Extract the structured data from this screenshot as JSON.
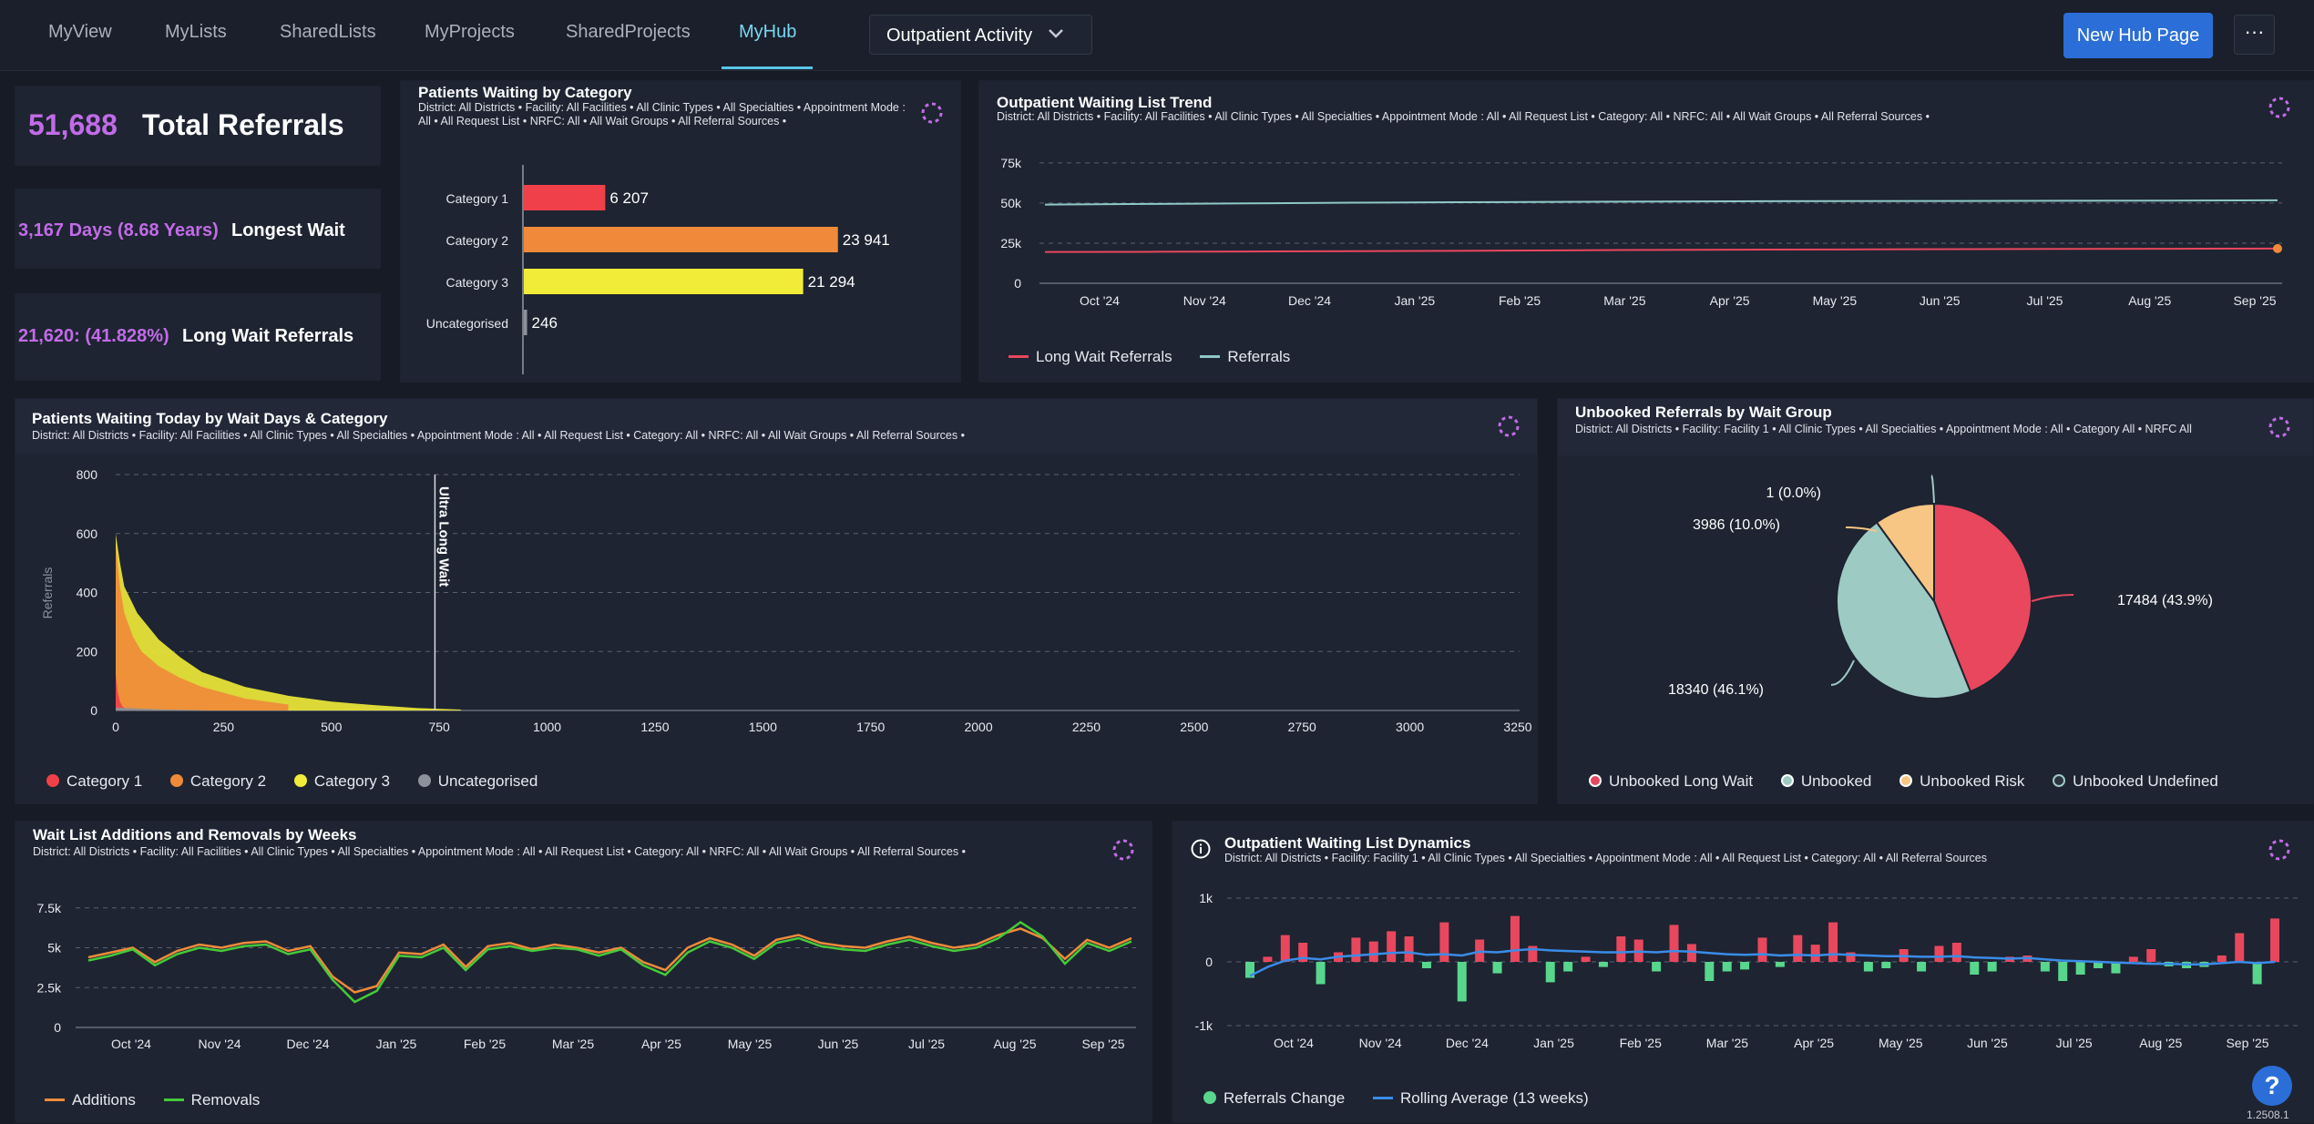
{
  "nav": {
    "tabs": [
      "MyView",
      "MyLists",
      "SharedLists",
      "MyProjects",
      "SharedProjects",
      "MyHub"
    ],
    "active_tab": "MyHub",
    "dropdown_value": "Outpatient Activity",
    "new_hub_label": "New Hub Page",
    "more_label": "···"
  },
  "kpis": {
    "total_referrals_value": "51,688",
    "total_referrals_label": "Total Referrals",
    "longest_wait_value": "3,167 Days (8.68 Years)",
    "longest_wait_label": "Longest Wait",
    "long_wait_value": "21,620: (41.828%)",
    "long_wait_label": "Long Wait Referrals"
  },
  "colors": {
    "cat1": "#f0404a",
    "cat2": "#f08a3a",
    "cat3": "#f0ec38",
    "uncat": "#8c919b",
    "long_wait": "#e8475e",
    "referrals": "#8ec8c8",
    "unbooked": "#9ecac4",
    "risk": "#f7c684",
    "additions": "#f08a3a",
    "removals": "#46c93a",
    "change_pos": "#e8475e",
    "change_neg": "#58d68d",
    "rolling": "#3a8ce8",
    "accent": "#c26be8"
  },
  "panels": {
    "category": {
      "title": "Patients Waiting by Category",
      "filter": "District: All Districts  •  Facility: All Facilities  •  All Clinic Types  •  All Specialties  •  Appointment Mode : All  •  All Request List  •  NRFC: All  •  All Wait Groups  •  All Referral Sources  •"
    },
    "trend": {
      "title": "Outpatient Waiting List Trend",
      "filter": "District: All Districts  •  Facility: All Facilities  •  All Clinic Types  •  All Specialties  •  Appointment Mode : All  •  All Request List  •  Category: All  •  NRFC: All  •  All Wait Groups  •  All Referral Sources  •",
      "legend": [
        "Long Wait Referrals",
        "Referrals"
      ]
    },
    "waitdays": {
      "title": "Patients Waiting Today by Wait Days & Category",
      "filter": "District: All Districts  •  Facility: All Facilities  •  All Clinic Types  •  All Specialties  •  Appointment Mode : All  •  All Request List  •  Category: All  •  NRFC: All  •  All Wait Groups  •  All Referral Sources  •",
      "legend": [
        "Category 1",
        "Category 2",
        "Category 3",
        "Uncategorised"
      ]
    },
    "unbooked": {
      "title": "Unbooked Referrals by Wait Group",
      "filter": "District: All Districts  •  Facility: Facility 1  •  All Clinic Types  •  All Specialties  •  Appointment Mode : All  •  Category All  •  NRFC All",
      "legend": [
        "Unbooked Long Wait",
        "Unbooked",
        "Unbooked Risk",
        "Unbooked Undefined"
      ]
    },
    "addrem": {
      "title": "Wait List Additions and Removals by Weeks",
      "filter": "District: All Districts  •  Facility: All Facilities  •  All Clinic Types  •  All Specialties  •  Appointment Mode : All  •  All Request List  •  Category: All  •  NRFC: All  •  All Wait Groups  •  All Referral Sources  •",
      "legend": [
        "Additions",
        "Removals"
      ]
    },
    "dynamics": {
      "title": "Outpatient Waiting List Dynamics",
      "filter": "District: All Districts  •  Facility: Facility 1  •  All Clinic Types  •  All Specialties  •  Appointment Mode : All  •  All Request List  •  Category: All  •  All Referral Sources",
      "legend": [
        "Referrals Change",
        "Rolling Average (13 weeks)"
      ]
    }
  },
  "version": "1.2508.1",
  "chart_data": [
    {
      "id": "category",
      "type": "bar",
      "orientation": "horizontal",
      "title": "Patients Waiting by Category",
      "categories": [
        "Category 1",
        "Category 2",
        "Category 3",
        "Uncategorised"
      ],
      "values": [
        6207,
        23941,
        21294,
        246
      ],
      "value_labels": [
        "6 207",
        "23 941",
        "21 294",
        "246"
      ]
    },
    {
      "id": "trend",
      "type": "line",
      "title": "Outpatient Waiting List Trend",
      "x_ticks": [
        "Oct '24",
        "Nov '24",
        "Dec '24",
        "Jan '25",
        "Feb '25",
        "Mar '25",
        "Apr '25",
        "May '25",
        "Jun '25",
        "Jul '25",
        "Aug '25",
        "Sep '25"
      ],
      "y_ticks": [
        "0",
        "25k",
        "50k",
        "75k"
      ],
      "ylim": [
        0,
        80000
      ],
      "series": [
        {
          "name": "Long Wait Referrals",
          "values": [
            19500,
            19600,
            19800,
            20000,
            20200,
            20500,
            20800,
            21000,
            21100,
            21300,
            21400,
            21500,
            21620
          ]
        },
        {
          "name": "Referrals",
          "values": [
            49000,
            49400,
            49800,
            50200,
            50500,
            50700,
            50900,
            51100,
            51200,
            51300,
            51400,
            51500,
            51688
          ]
        }
      ]
    },
    {
      "id": "waitdays",
      "type": "area",
      "title": "Patients Waiting Today by Wait Days & Category",
      "xlabel": "",
      "ylabel": "Referrals",
      "x_ticks": [
        "0",
        "250",
        "500",
        "750",
        "1000",
        "1250",
        "1500",
        "1750",
        "2000",
        "2250",
        "2500",
        "2750",
        "3000",
        "3250"
      ],
      "y_ticks": [
        "0",
        "200",
        "400",
        "600",
        "800"
      ],
      "xlim": [
        0,
        3250
      ],
      "ylim": [
        0,
        800
      ],
      "annotation": {
        "x": 740,
        "label": "Ultra Long Wait"
      },
      "series": [
        {
          "name": "Category 1",
          "x": [
            0,
            5,
            10,
            15,
            20,
            30,
            40,
            60,
            80
          ],
          "values": [
            120,
            60,
            30,
            15,
            8,
            5,
            3,
            2,
            1
          ]
        },
        {
          "name": "Category 2",
          "x": [
            0,
            10,
            20,
            40,
            60,
            100,
            150,
            200,
            300,
            400
          ],
          "values": [
            560,
            420,
            330,
            250,
            200,
            150,
            110,
            80,
            40,
            20
          ]
        },
        {
          "name": "Category 3",
          "x": [
            0,
            10,
            20,
            50,
            100,
            150,
            200,
            300,
            400,
            500,
            600,
            700,
            800
          ],
          "values": [
            600,
            500,
            420,
            330,
            240,
            180,
            130,
            80,
            50,
            30,
            18,
            8,
            3
          ]
        },
        {
          "name": "Uncategorised",
          "x": [
            0,
            100,
            200
          ],
          "values": [
            10,
            4,
            1
          ]
        }
      ]
    },
    {
      "id": "unbooked",
      "type": "pie",
      "title": "Unbooked Referrals by Wait Group",
      "labels": [
        "Unbooked Long Wait",
        "Unbooked",
        "Unbooked Risk",
        "Unbooked Undefined"
      ],
      "values": [
        17484,
        18340,
        3986,
        1
      ],
      "value_labels": [
        "17484 (43.9%)",
        "18340 (46.1%)",
        "3986 (10.0%)",
        "1 (0.0%)"
      ]
    },
    {
      "id": "addrem",
      "type": "line",
      "title": "Wait List Additions and Removals by Weeks",
      "x_ticks": [
        "Oct '24",
        "Nov '24",
        "Dec '24",
        "Jan '25",
        "Feb '25",
        "Mar '25",
        "Apr '25",
        "May '25",
        "Jun '25",
        "Jul '25",
        "Aug '25",
        "Sep '25"
      ],
      "y_ticks": [
        "0",
        "2.5k",
        "5k",
        "7.5k"
      ],
      "ylim": [
        0,
        8000
      ],
      "series": [
        {
          "name": "Additions",
          "values": [
            4400,
            4700,
            5000,
            4100,
            4800,
            5200,
            5000,
            5300,
            5400,
            4800,
            5100,
            3200,
            2200,
            2600,
            4700,
            4600,
            5200,
            3800,
            5100,
            5300,
            4900,
            5200,
            5000,
            4700,
            5000,
            4100,
            3600,
            5000,
            5600,
            5200,
            4500,
            5500,
            5800,
            5300,
            5100,
            5000,
            5400,
            5700,
            5300,
            5000,
            5200,
            5800,
            6200,
            5600,
            4300,
            5500,
            5000,
            5600
          ]
        },
        {
          "name": "Removals",
          "values": [
            4200,
            4500,
            4900,
            3900,
            4600,
            5000,
            4800,
            5100,
            5200,
            4600,
            4900,
            3000,
            1600,
            2300,
            4500,
            4400,
            5000,
            3600,
            4900,
            5100,
            4800,
            5000,
            4900,
            4500,
            4900,
            3900,
            3300,
            4700,
            5400,
            5000,
            4300,
            5300,
            5600,
            5100,
            4900,
            4800,
            5200,
            5500,
            5100,
            4800,
            5000,
            5600,
            6600,
            5700,
            4000,
            5300,
            4800,
            5400
          ]
        }
      ]
    },
    {
      "id": "dynamics",
      "type": "bar",
      "title": "Outpatient Waiting List Dynamics",
      "x_ticks": [
        "Oct '24",
        "Nov '24",
        "Dec '24",
        "Jan '25",
        "Feb '25",
        "Mar '25",
        "Apr '25",
        "May '25",
        "Jun '25",
        "Jul '25",
        "Aug '25",
        "Sep '25"
      ],
      "y_ticks": [
        "-1k",
        "0",
        "1k"
      ],
      "ylim": [
        -1000,
        1000
      ],
      "series": [
        {
          "name": "Referrals Change",
          "values": [
            -250,
            80,
            420,
            300,
            -350,
            150,
            380,
            320,
            480,
            400,
            -100,
            620,
            -620,
            350,
            -180,
            720,
            250,
            -320,
            -150,
            80,
            -80,
            400,
            350,
            -150,
            580,
            280,
            -300,
            -150,
            -120,
            380,
            -80,
            420,
            270,
            620,
            150,
            -150,
            -100,
            200,
            -150,
            250,
            300,
            -200,
            -150,
            80,
            100,
            -150,
            -300,
            -200,
            -100,
            -180,
            80,
            200,
            -70,
            -100,
            -80,
            100,
            450,
            -350,
            680
          ]
        },
        {
          "name": "Rolling Average (13 weeks)",
          "values": [
            -220,
            -80,
            20,
            60,
            40,
            80,
            100,
            120,
            140,
            150,
            110,
            120,
            100,
            160,
            150,
            180,
            200,
            180,
            170,
            160,
            150,
            150,
            160,
            150,
            170,
            160,
            140,
            120,
            110,
            120,
            100,
            110,
            100,
            120,
            110,
            100,
            90,
            90,
            80,
            80,
            90,
            70,
            60,
            50,
            60,
            40,
            20,
            10,
            0,
            -10,
            -20,
            -30,
            -30,
            -40,
            -40,
            -20,
            0,
            -20,
            0
          ]
        }
      ]
    }
  ]
}
